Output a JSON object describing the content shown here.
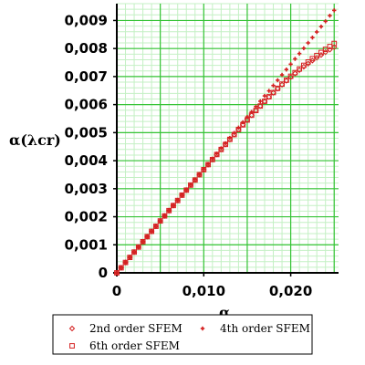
{
  "chart_data": {
    "type": "scatter",
    "xlabel": "α",
    "ylabel": "α(λcr)",
    "xlim": [
      0,
      0.0255
    ],
    "ylim": [
      0,
      0.0096
    ],
    "grid": true,
    "x_ticks": [
      {
        "value": 0,
        "label": "0"
      },
      {
        "value": 0.01,
        "label": "0,010"
      },
      {
        "value": 0.02,
        "label": "0,020"
      }
    ],
    "y_ticks": [
      {
        "value": 0,
        "label": "0"
      },
      {
        "value": 0.001,
        "label": "0,001"
      },
      {
        "value": 0.002,
        "label": "0,002"
      },
      {
        "value": 0.003,
        "label": "0,003"
      },
      {
        "value": 0.004,
        "label": "0,004"
      },
      {
        "value": 0.005,
        "label": "0,005"
      },
      {
        "value": 0.006,
        "label": "0,006"
      },
      {
        "value": 0.007,
        "label": "0,007"
      },
      {
        "value": 0.008,
        "label": "0,008"
      },
      {
        "value": 0.009,
        "label": "0,009"
      }
    ],
    "series": [
      {
        "name": "2nd order SFEM",
        "marker": "diamond",
        "color": "#d42020",
        "x": [
          0,
          0.0005,
          0.001,
          0.0015,
          0.002,
          0.0025,
          0.003,
          0.0035,
          0.004,
          0.0045,
          0.005,
          0.0055,
          0.006,
          0.0065,
          0.007,
          0.0075,
          0.008,
          0.0085,
          0.009,
          0.0095,
          0.01,
          0.0105,
          0.011,
          0.0115,
          0.012,
          0.0125,
          0.013,
          0.0135,
          0.014,
          0.0145,
          0.015,
          0.0155,
          0.016,
          0.0165,
          0.017,
          0.0175,
          0.018,
          0.0185,
          0.019,
          0.0195,
          0.02,
          0.0205,
          0.021,
          0.0215,
          0.022,
          0.0225,
          0.023,
          0.0235,
          0.024,
          0.0245,
          0.025
        ],
        "y": [
          0,
          0.00018,
          0.00037,
          0.00055,
          0.00074,
          0.00092,
          0.00111,
          0.00129,
          0.00148,
          0.00166,
          0.00185,
          0.00203,
          0.00222,
          0.0024,
          0.00258,
          0.00277,
          0.00295,
          0.00313,
          0.00331,
          0.0035,
          0.00368,
          0.00386,
          0.00404,
          0.00422,
          0.0044,
          0.00458,
          0.00476,
          0.00493,
          0.00511,
          0.00528,
          0.00545,
          0.00562,
          0.00579,
          0.00595,
          0.00611,
          0.00627,
          0.00642,
          0.00657,
          0.00671,
          0.00685,
          0.00698,
          0.00711,
          0.00723,
          0.00735,
          0.00746,
          0.00757,
          0.00767,
          0.00777,
          0.00787,
          0.00796,
          0.00805
        ]
      },
      {
        "name": "4th order SFEM",
        "marker": "cross",
        "color": "#d42020",
        "x": [
          0,
          0.0005,
          0.001,
          0.0015,
          0.002,
          0.0025,
          0.003,
          0.0035,
          0.004,
          0.0045,
          0.005,
          0.0055,
          0.006,
          0.0065,
          0.007,
          0.0075,
          0.008,
          0.0085,
          0.009,
          0.0095,
          0.01,
          0.0105,
          0.011,
          0.0115,
          0.012,
          0.0125,
          0.013,
          0.0135,
          0.014,
          0.0145,
          0.015,
          0.0155,
          0.016,
          0.0165,
          0.017,
          0.0175,
          0.018,
          0.0185,
          0.019,
          0.0195,
          0.02,
          0.0205,
          0.021,
          0.0215,
          0.022,
          0.0225,
          0.023,
          0.0235,
          0.024,
          0.0245,
          0.025
        ],
        "y": [
          0,
          0.00018,
          0.00037,
          0.00055,
          0.00074,
          0.00092,
          0.00111,
          0.00129,
          0.00148,
          0.00166,
          0.00185,
          0.00203,
          0.00222,
          0.0024,
          0.00259,
          0.00277,
          0.00296,
          0.00314,
          0.00333,
          0.00351,
          0.0037,
          0.00388,
          0.00407,
          0.00425,
          0.00444,
          0.00462,
          0.00481,
          0.00499,
          0.00518,
          0.00537,
          0.00556,
          0.00574,
          0.00593,
          0.00612,
          0.00631,
          0.00649,
          0.00668,
          0.00687,
          0.00706,
          0.00725,
          0.00744,
          0.00763,
          0.00782,
          0.00801,
          0.0082,
          0.00839,
          0.00859,
          0.00878,
          0.00897,
          0.00917,
          0.00936
        ]
      },
      {
        "name": "6th order SFEM",
        "marker": "square",
        "color": "#d42020",
        "x": [
          0,
          0.0005,
          0.001,
          0.0015,
          0.002,
          0.0025,
          0.003,
          0.0035,
          0.004,
          0.0045,
          0.005,
          0.0055,
          0.006,
          0.0065,
          0.007,
          0.0075,
          0.008,
          0.0085,
          0.009,
          0.0095,
          0.01,
          0.0105,
          0.011,
          0.0115,
          0.012,
          0.0125,
          0.013,
          0.0135,
          0.014,
          0.0145,
          0.015,
          0.0155,
          0.016,
          0.0165,
          0.017,
          0.0175,
          0.018,
          0.0185,
          0.019,
          0.0195,
          0.02,
          0.0205,
          0.021,
          0.0215,
          0.022,
          0.0225,
          0.023,
          0.0235,
          0.024,
          0.0245,
          0.025
        ],
        "y": [
          0,
          0.00018,
          0.00037,
          0.00055,
          0.00074,
          0.00092,
          0.00111,
          0.00129,
          0.00148,
          0.00166,
          0.00185,
          0.00203,
          0.00222,
          0.0024,
          0.00258,
          0.00277,
          0.00295,
          0.00313,
          0.00331,
          0.0035,
          0.00368,
          0.00386,
          0.00404,
          0.00422,
          0.0044,
          0.00458,
          0.00476,
          0.00493,
          0.00511,
          0.00528,
          0.00545,
          0.00562,
          0.00579,
          0.00595,
          0.00612,
          0.00628,
          0.00643,
          0.00658,
          0.00673,
          0.00687,
          0.00701,
          0.00714,
          0.00727,
          0.0074,
          0.00752,
          0.00764,
          0.00775,
          0.00786,
          0.00797,
          0.00807,
          0.00818
        ]
      }
    ],
    "legend": {
      "placement": "bottom",
      "entries": [
        {
          "label": "2nd order SFEM",
          "marker": "diamond"
        },
        {
          "label": "4th order SFEM",
          "marker": "cross"
        },
        {
          "label": "6th order SFEM",
          "marker": "square"
        }
      ]
    },
    "colors": {
      "major_grid": "#35c335",
      "minor_grid": "#c4f0c4",
      "marker": "#d42020"
    }
  }
}
